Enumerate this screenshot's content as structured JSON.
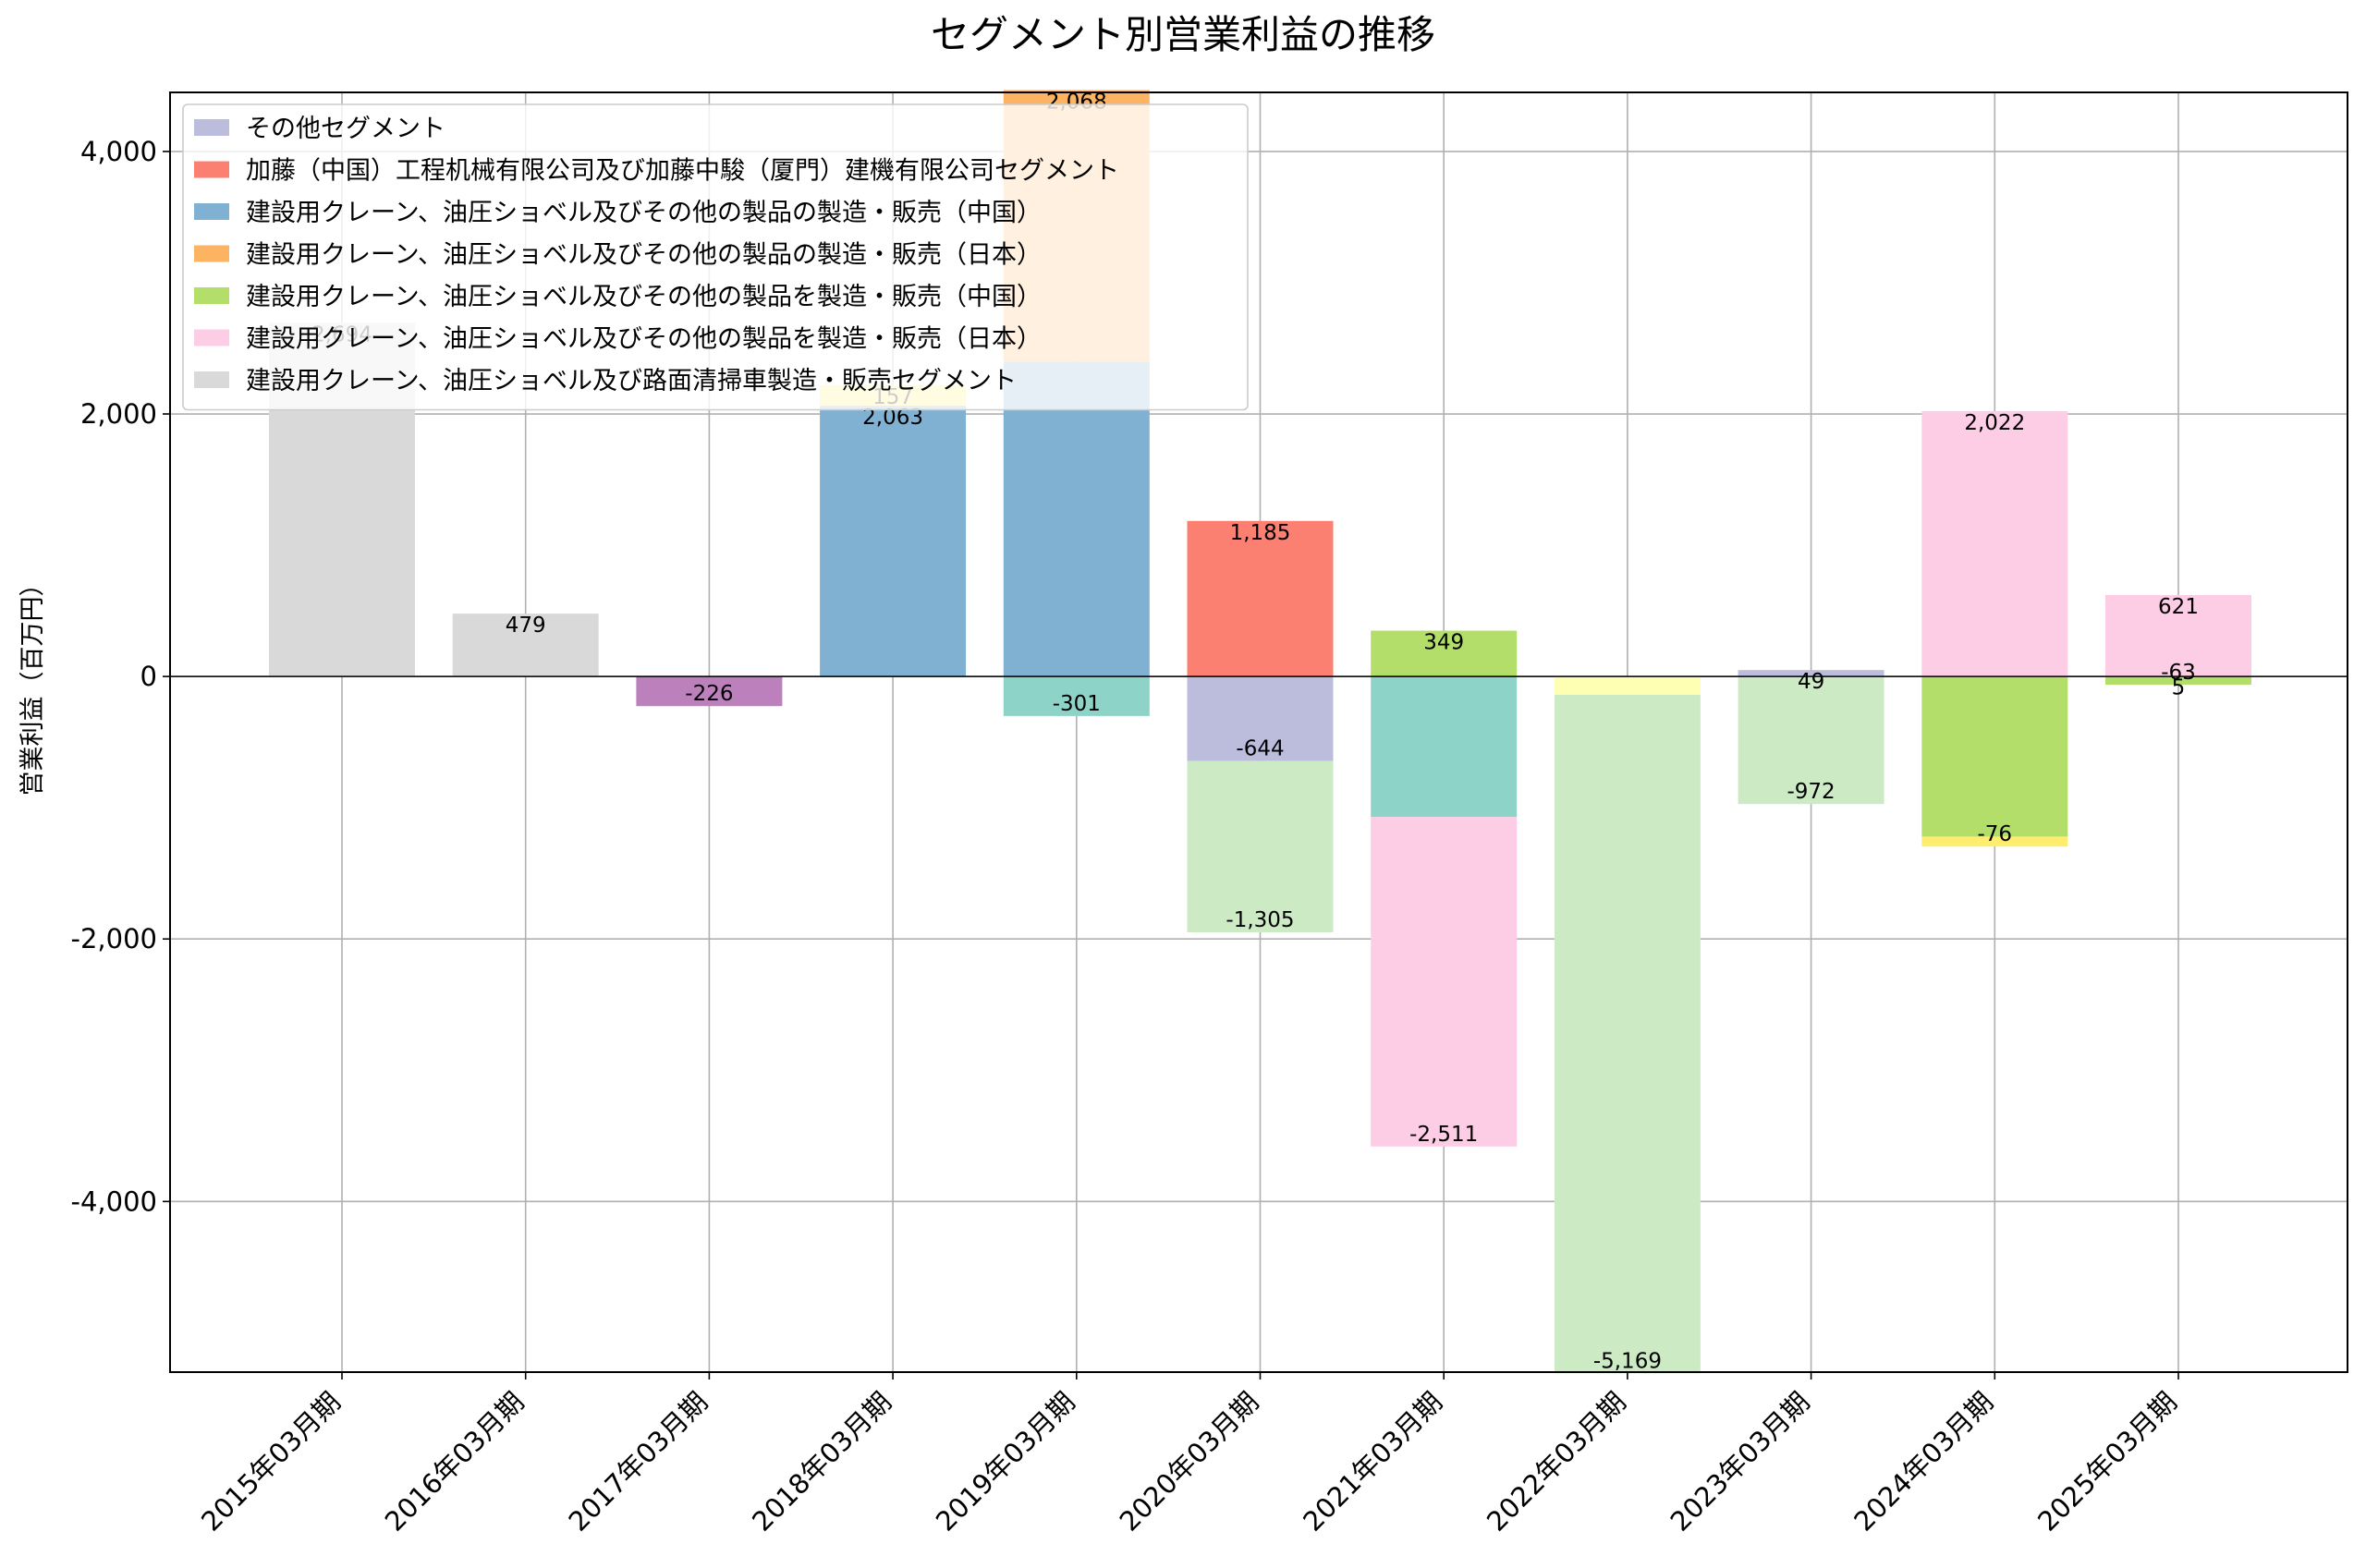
{
  "chart_data": {
    "type": "bar",
    "stacked": true,
    "title": "セグメント別営業利益の推移",
    "xlabel": "",
    "ylabel": "営業利益（百万円）",
    "ylim": [
      -5300,
      4450
    ],
    "yticks": [
      -4000,
      -2000,
      0,
      2000,
      4000
    ],
    "ytick_labels": [
      "-4,000",
      "-2,000",
      "0",
      "2,000",
      "4,000"
    ],
    "grid": true,
    "legend_position": "top-left",
    "categories": [
      "2015年03月期",
      "2016年03月期",
      "2017年03月期",
      "2018年03月期",
      "2019年03月期",
      "2020年03月期",
      "2021年03月期",
      "2022年03月期",
      "2023年03月期",
      "2024年03月期",
      "2025年03月期"
    ],
    "legend": [
      {
        "label": "その他セグメント",
        "color": "#bcbddc"
      },
      {
        "label": "加藤（中国）工程机械有限公司及び加藤中駿（厦門）建機有限公司セグメント",
        "color": "#fb8072"
      },
      {
        "label": "建設用クレーン、油圧ショベル及びその他の製品の製造・販売（中国）",
        "color": "#80b1d3"
      },
      {
        "label": "建設用クレーン、油圧ショベル及びその他の製品の製造・販売（日本）",
        "color": "#fdb462"
      },
      {
        "label": "建設用クレーン、油圧ショベル及びその他の製品を製造・販売（中国）",
        "color": "#b3de69"
      },
      {
        "label": "建設用クレーン、油圧ショベル及びその他の製品を製造・販売（日本）",
        "color": "#fccde5"
      },
      {
        "label": "建設用クレーン、油圧ショベル及び路面清掃車製造・販売セグメント",
        "color": "#d9d9d9"
      }
    ],
    "bars": [
      {
        "category": "2015年03月期",
        "y0": 0,
        "y1": 2694,
        "color": "#d9d9d9",
        "label": "2,694"
      },
      {
        "category": "2016年03月期",
        "y0": 0,
        "y1": 479,
        "color": "#d9d9d9",
        "label": "479"
      },
      {
        "category": "2017年03月期",
        "y0": 0,
        "y1": -226,
        "color": "#bc80bd",
        "label": "-226"
      },
      {
        "category": "2018年03月期",
        "y0": 0,
        "y1": 2063,
        "color": "#80b1d3",
        "label": "2,063"
      },
      {
        "category": "2018年03月期",
        "y0": 2063,
        "y1": 2220,
        "color": "#ffed6f",
        "label": "157"
      },
      {
        "category": "2019年03月期",
        "y0": 0,
        "y1": 2400,
        "color": "#80b1d3",
        "label": ""
      },
      {
        "category": "2019年03月期",
        "y0": 2400,
        "y1": 4468,
        "color": "#fdb462",
        "label": "2,068"
      },
      {
        "category": "2019年03月期",
        "y0": 0,
        "y1": -301,
        "color": "#8dd3c7",
        "label": "-301"
      },
      {
        "category": "2020年03月期",
        "y0": 0,
        "y1": 1185,
        "color": "#fb8072",
        "label": "1,185"
      },
      {
        "category": "2020年03月期",
        "y0": 0,
        "y1": -644,
        "color": "#bcbddc",
        "label": "-644"
      },
      {
        "category": "2020年03月期",
        "y0": -644,
        "y1": -1949,
        "color": "#ccebc5",
        "label": "-1,305"
      },
      {
        "category": "2021年03月期",
        "y0": 0,
        "y1": 349,
        "color": "#b3de69",
        "label": "349"
      },
      {
        "category": "2021年03月期",
        "y0": 0,
        "y1": -1070,
        "color": "#8dd3c7",
        "label": ""
      },
      {
        "category": "2021年03月期",
        "y0": -1070,
        "y1": -3581,
        "color": "#fccde5",
        "label": "-2,511"
      },
      {
        "category": "2022年03月期",
        "y0": 0,
        "y1": -140,
        "color": "#ffffb3",
        "label": ""
      },
      {
        "category": "2022年03月期",
        "y0": -140,
        "y1": -5309,
        "color": "#ccebc5",
        "label": "-5,169"
      },
      {
        "category": "2023年03月期",
        "y0": 0,
        "y1": 49,
        "color": "#bcbddc",
        "label": "49"
      },
      {
        "category": "2023年03月期",
        "y0": 0,
        "y1": -972,
        "color": "#ccebc5",
        "label": "-972"
      },
      {
        "category": "2024年03月期",
        "y0": 0,
        "y1": 2022,
        "color": "#fccde5",
        "label": "2,022"
      },
      {
        "category": "2024年03月期",
        "y0": 0,
        "y1": -1220,
        "color": "#b3de69",
        "label": ""
      },
      {
        "category": "2024年03月期",
        "y0": -1220,
        "y1": -1296,
        "color": "#ffed6f",
        "label": "-76"
      },
      {
        "category": "2025年03月期",
        "y0": 0,
        "y1": 621,
        "color": "#fccde5",
        "label": "621"
      },
      {
        "category": "2025年03月期",
        "y0": 0,
        "y1": 5,
        "color": "#bcbddc",
        "label": "5"
      },
      {
        "category": "2025年03月期",
        "y0": 0,
        "y1": -63,
        "color": "#b3de69",
        "label": "-63"
      }
    ]
  }
}
